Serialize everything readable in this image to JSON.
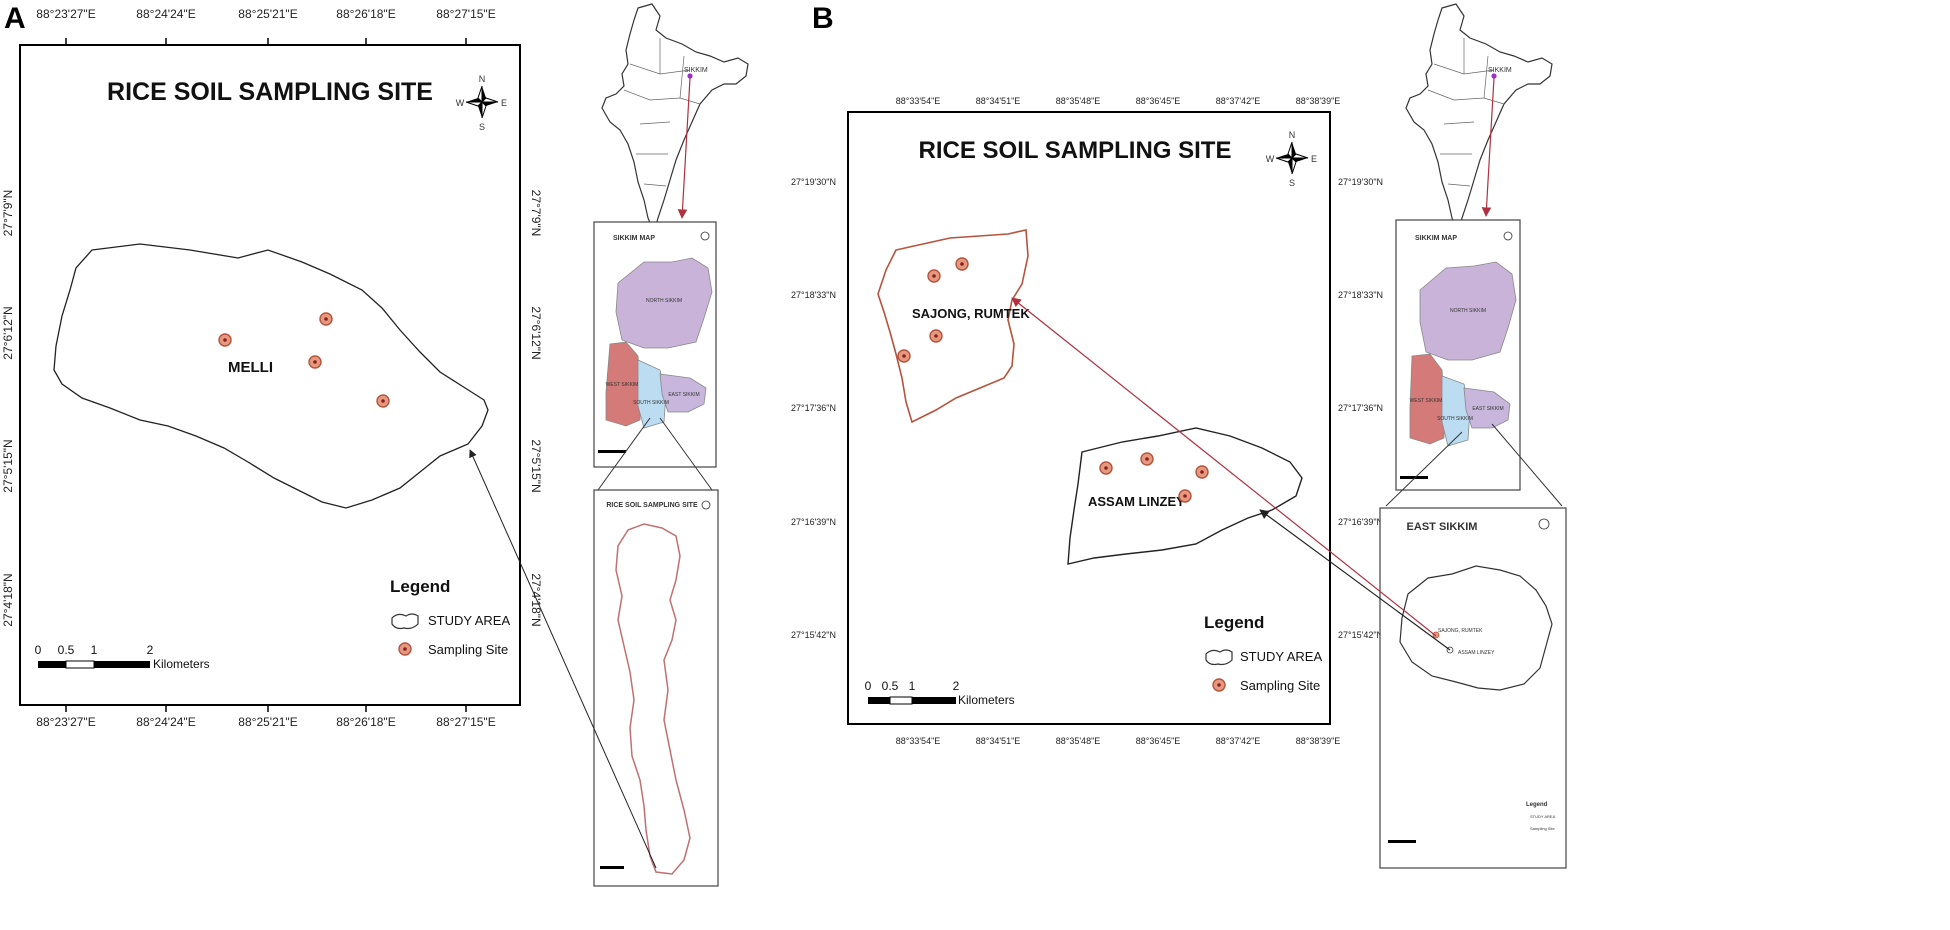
{
  "panels": [
    {
      "letter": "A",
      "title": "RICE SOIL SAMPLING SITE",
      "top_coords": [
        "88°23'27\"E",
        "88°24'24\"E",
        "88°25'21\"E",
        "88°26'18\"E",
        "88°27'15\"E"
      ],
      "bottom_coords": [
        "88°23'27\"E",
        "88°24'24\"E",
        "88°25'21\"E",
        "88°26'18\"E",
        "88°27'15\"E"
      ],
      "side_coords": [
        "27°7'9\"N",
        "27°6'12\"N",
        "27°5'15\"N",
        "27°4'18\"N"
      ],
      "places": [
        "MELLI"
      ],
      "compass": {
        "n": "N",
        "e": "E",
        "s": "S",
        "w": "W"
      },
      "legend": {
        "heading": "Legend",
        "study_area": "STUDY AREA",
        "sampling_site": "Sampling Site"
      },
      "scale": {
        "ticks": [
          "0",
          "0.5",
          "1",
          "2"
        ],
        "unit": "Kilometers"
      },
      "inset_state_label": "SIKKIM",
      "inset_map": {
        "title": "SIKKIM MAP",
        "districts": [
          "NORTH SIKKIM",
          "WEST SIKKIM",
          "SOUTH SIKKIM",
          "EAST SIKKIM"
        ]
      },
      "inset_site": {
        "title": "RICE SOIL SAMPLING SITE"
      }
    },
    {
      "letter": "B",
      "title": "RICE SOIL SAMPLING SITE",
      "top_coords": [
        "88°33'54\"E",
        "88°34'51\"E",
        "88°35'48\"E",
        "88°36'45\"E",
        "88°37'42\"E",
        "88°38'39\"E"
      ],
      "bottom_coords": [
        "88°33'54\"E",
        "88°34'51\"E",
        "88°35'48\"E",
        "88°36'45\"E",
        "88°37'42\"E",
        "88°38'39\"E"
      ],
      "side_coords": [
        "27°19'30\"N",
        "27°18'33\"N",
        "27°17'36\"N",
        "27°16'39\"N",
        "27°15'42\"N"
      ],
      "places": [
        "SAJONG, RUMTEK",
        "ASSAM LINZEY"
      ],
      "compass": {
        "n": "N",
        "e": "E",
        "s": "S",
        "w": "W"
      },
      "legend": {
        "heading": "Legend",
        "study_area": "STUDY AREA",
        "sampling_site": "Sampling Site"
      },
      "scale": {
        "ticks": [
          "0",
          "0.5",
          "1",
          "2"
        ],
        "unit": "Kilometers"
      },
      "inset_state_label": "SIKKIM",
      "inset_map": {
        "title": "SIKKIM MAP",
        "districts": [
          "NORTH SIKKIM",
          "WEST SIKKIM",
          "SOUTH SIKKIM",
          "EAST SIKKIM"
        ]
      },
      "inset_site": {
        "title": "EAST SIKKIM",
        "labels": [
          "SAJONG, RUMTEK",
          "ASSAM LINZEY"
        ],
        "legend_heading": "Legend",
        "legend_items": [
          "STUDY AREA",
          "Sampling Site"
        ]
      }
    }
  ],
  "colors": {
    "frame": "#000000",
    "sajong_outline": "#b5533c",
    "sampling_site_fill": "#e59a80",
    "sampling_site_dot": "#c0392b",
    "north_sikkim": "#c9b3d9",
    "west_sikkim": "#d47a78",
    "south_sikkim": "#bcdcf2",
    "east_sikkim": "#c8b6dc",
    "red_arrow": "#b03040",
    "site_inset_outline": "#c07070"
  }
}
